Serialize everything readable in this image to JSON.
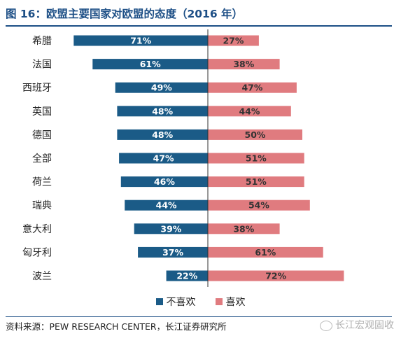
{
  "title": "图 16：欧盟主要国家对欧盟的态度（2016 年）",
  "source": "资料来源：PEW RESEARCH CENTER，长江证券研究所",
  "watermark": "长江宏观固收",
  "watermark_icon": "wechat-icon",
  "colors": {
    "unfavorable": "#1b5b87",
    "favorable": "#e07b7f",
    "title": "#1d4f86"
  },
  "chart_data": {
    "type": "bar",
    "orientation": "horizontal-diverging",
    "title": "图 16：欧盟主要国家对欧盟的态度（2016 年）",
    "categories": [
      "希腊",
      "法国",
      "西班牙",
      "英国",
      "德国",
      "全部",
      "荷兰",
      "瑞典",
      "意大利",
      "匈牙利",
      "波兰"
    ],
    "series": [
      {
        "name": "不喜欢",
        "values": [
          71,
          61,
          49,
          48,
          48,
          47,
          46,
          44,
          39,
          37,
          22
        ],
        "direction": "left"
      },
      {
        "name": "喜欢",
        "values": [
          27,
          38,
          47,
          44,
          50,
          51,
          51,
          54,
          38,
          61,
          72
        ],
        "direction": "right"
      }
    ],
    "value_suffix": "%",
    "xlim": [
      0,
      100
    ],
    "legend_position": "bottom",
    "grid": false
  }
}
